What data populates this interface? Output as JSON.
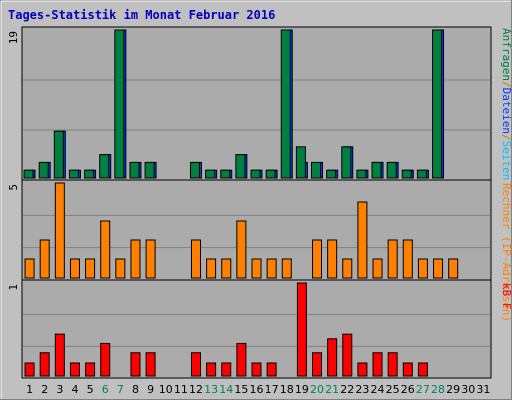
{
  "chart_data": {
    "type": "bar",
    "title": "Tages-Statistik im Monat Februar 2016",
    "categories": [
      "1",
      "2",
      "3",
      "4",
      "5",
      "6",
      "7",
      "8",
      "9",
      "10",
      "11",
      "12",
      "13",
      "14",
      "15",
      "16",
      "17",
      "18",
      "19",
      "20",
      "21",
      "22",
      "23",
      "24",
      "25",
      "26",
      "27",
      "28",
      "29",
      "30",
      "31"
    ],
    "weekend_days": [
      "6",
      "7",
      "13",
      "14",
      "20",
      "21",
      "27",
      "28"
    ],
    "panels": [
      {
        "name": "requests_files",
        "ymax_label": "19",
        "ylim": [
          0,
          19
        ],
        "grid_lines": 3,
        "series": [
          {
            "name": "Dateien",
            "color": "#0040ff",
            "values": [
              1,
              2,
              6,
              1,
              1,
              3,
              19,
              2,
              2,
              0,
              0,
              2,
              1,
              1,
              3,
              1,
              1,
              19,
              2,
              2,
              1,
              4,
              1,
              2,
              2,
              1,
              1,
              19,
              0,
              0,
              0
            ]
          },
          {
            "name": "Anfragen",
            "color": "#008040",
            "values": [
              1,
              2,
              6,
              1,
              1,
              3,
              19,
              2,
              2,
              0,
              0,
              2,
              1,
              1,
              3,
              1,
              1,
              19,
              4,
              2,
              1,
              4,
              1,
              2,
              2,
              1,
              1,
              19,
              0,
              0,
              0
            ]
          }
        ]
      },
      {
        "name": "visits",
        "ymax_label": "5",
        "ylim": [
          0,
          5
        ],
        "grid_lines": 3,
        "series": [
          {
            "name": "Rechner (IP-Adressen)",
            "color": "#ff8000",
            "values": [
              1,
              2,
              5,
              1,
              1,
              3,
              1,
              2,
              2,
              0,
              0,
              2,
              1,
              1,
              3,
              1,
              1,
              1,
              0,
              2,
              2,
              1,
              4,
              1,
              2,
              2,
              1,
              1,
              1,
              0,
              0
            ]
          }
        ]
      },
      {
        "name": "kbytes",
        "ymax_label": "1",
        "ylim": [
          0,
          1
        ],
        "grid_lines": 3,
        "series": [
          {
            "name": "kB F",
            "color": "#ff0000",
            "values": [
              0.14,
              0.25,
              0.45,
              0.14,
              0.14,
              0.35,
              0,
              0.25,
              0.25,
              0,
              0,
              0.25,
              0.14,
              0.14,
              0.35,
              0.14,
              0.14,
              0,
              1.0,
              0.25,
              0.4,
              0.45,
              0.14,
              0.25,
              0.25,
              0.14,
              0.14,
              0,
              0,
              0,
              0
            ]
          }
        ]
      }
    ],
    "right_labels": [
      {
        "text": "Anfragen",
        "color": "#008040"
      },
      {
        "text": "/",
        "color": "#c08000"
      },
      {
        "text": "Dateien",
        "color": "#0040ff"
      },
      {
        "text": "/",
        "color": "#c08000"
      },
      {
        "text": "Seiten",
        "color": "#00c0ff"
      },
      {
        "text": "Rechner (IP-Adressen)",
        "color": "#ff8000"
      },
      {
        "text": "kB F",
        "color": "#ff0000"
      }
    ],
    "colors": {
      "title": "#0000c0",
      "weekday": "#000000",
      "weekend": "#00805f",
      "plot_bg": "#ababab",
      "grid": "#808080"
    }
  }
}
